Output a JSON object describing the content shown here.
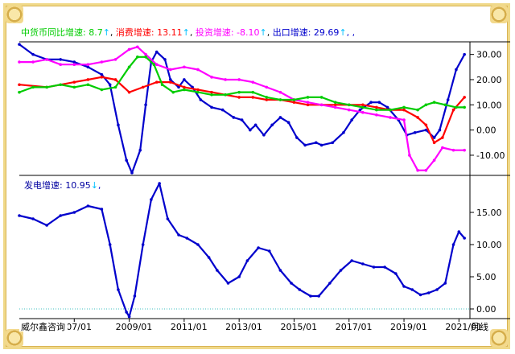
{
  "chart_data": [
    {
      "type": "line",
      "title": "",
      "legend": [
        {
          "label": "中货币同比增速: 8.7",
          "arrow": "↑",
          "color": "#00cc00"
        },
        {
          "label": "消费增速: 13.11",
          "arrow": "↑",
          "color": "#ff0000"
        },
        {
          "label": "投资增速: -8.10",
          "arrow": "↑",
          "color": "#ff00ff"
        },
        {
          "label": "出口增速: 29.69",
          "arrow": "↑",
          "color": "#0000cc"
        }
      ],
      "legend_tail": ",  ,",
      "yticks": [
        "30.00",
        "20.00",
        "10.00",
        "0.00",
        "-10.00"
      ],
      "ylim": [
        -18,
        35
      ],
      "xlim": [
        2005,
        2021.4
      ],
      "series": [
        {
          "color": "#0000cc",
          "x": [
            2005.0,
            2005.5,
            2006.0,
            2006.5,
            2007.0,
            2007.5,
            2008.0,
            2008.3,
            2008.6,
            2008.9,
            2009.1,
            2009.4,
            2009.6,
            2009.8,
            2010.0,
            2010.3,
            2010.5,
            2010.8,
            2011.0,
            2011.3,
            2011.6,
            2012.0,
            2012.4,
            2012.8,
            2013.1,
            2013.4,
            2013.6,
            2013.9,
            2014.2,
            2014.5,
            2014.8,
            2015.1,
            2015.4,
            2015.8,
            2016.0,
            2016.4,
            2016.8,
            2017.1,
            2017.4,
            2017.8,
            2018.1,
            2018.4,
            2018.8,
            2019.1,
            2019.4,
            2019.8,
            2020.1,
            2020.3,
            2020.6,
            2020.9,
            2021.2
          ],
          "values": [
            34,
            30,
            28,
            28,
            27,
            25,
            22,
            18,
            2,
            -12,
            -17,
            -8,
            10,
            27,
            31,
            28,
            20,
            17,
            20,
            17,
            12,
            9,
            8,
            5,
            4,
            0,
            2,
            -2,
            2,
            5,
            3,
            -3,
            -6,
            -5,
            -6,
            -5,
            -1,
            4,
            8,
            11,
            11,
            9,
            4,
            -2,
            -1,
            0,
            -3,
            0,
            12,
            24,
            30
          ]
        },
        {
          "color": "#ff0000",
          "x": [
            2005.0,
            2006.0,
            2007.0,
            2007.5,
            2008.0,
            2008.5,
            2009.0,
            2009.5,
            2010.0,
            2010.5,
            2011.0,
            2011.5,
            2012.0,
            2012.5,
            2013.0,
            2013.5,
            2014.0,
            2014.5,
            2015.0,
            2015.5,
            2016.0,
            2016.5,
            2017.0,
            2017.5,
            2018.0,
            2018.5,
            2019.0,
            2019.5,
            2019.8,
            2020.1,
            2020.4,
            2020.8,
            2021.2
          ],
          "values": [
            18,
            17,
            19,
            20,
            21,
            20,
            15,
            17,
            19,
            19,
            17,
            16,
            15,
            14,
            13,
            13,
            12,
            12,
            11,
            10,
            10,
            10,
            10,
            10,
            9,
            8,
            8,
            5,
            2,
            -5,
            -3,
            8,
            13
          ]
        },
        {
          "color": "#ff00ff",
          "x": [
            2005.0,
            2005.5,
            2006.0,
            2006.5,
            2007.0,
            2007.5,
            2008.0,
            2008.5,
            2009.0,
            2009.3,
            2009.6,
            2010.0,
            2010.5,
            2011.0,
            2011.5,
            2012.0,
            2012.5,
            2013.0,
            2013.5,
            2014.0,
            2014.5,
            2015.0,
            2015.5,
            2016.0,
            2016.5,
            2017.0,
            2017.5,
            2018.0,
            2018.5,
            2019.0,
            2019.2,
            2019.5,
            2019.8,
            2020.1,
            2020.4,
            2020.8,
            2021.2
          ],
          "values": [
            27,
            27,
            28,
            26,
            26,
            26,
            27,
            28,
            32,
            33,
            30,
            26,
            24,
            25,
            24,
            21,
            20,
            20,
            19,
            17,
            15,
            12,
            11,
            10,
            9,
            8,
            7,
            6,
            5,
            4,
            -10,
            -16,
            -16,
            -12,
            -7,
            -8,
            -8
          ]
        },
        {
          "color": "#00cc00",
          "x": [
            2005.0,
            2005.5,
            2006.0,
            2006.5,
            2007.0,
            2007.5,
            2008.0,
            2008.5,
            2009.0,
            2009.3,
            2009.6,
            2009.9,
            2010.2,
            2010.6,
            2011.0,
            2011.5,
            2012.0,
            2012.5,
            2013.0,
            2013.5,
            2014.0,
            2014.5,
            2015.0,
            2015.5,
            2016.0,
            2016.5,
            2017.0,
            2017.5,
            2018.0,
            2018.5,
            2019.0,
            2019.5,
            2019.8,
            2020.1,
            2020.5,
            2020.9,
            2021.2
          ],
          "values": [
            15,
            17,
            17,
            18,
            17,
            18,
            16,
            17,
            25,
            29,
            29,
            26,
            18,
            15,
            16,
            15,
            14,
            14,
            15,
            15,
            13,
            12,
            12,
            13,
            13,
            11,
            10,
            9,
            8,
            8,
            9,
            8,
            10,
            11,
            10,
            9,
            9
          ]
        }
      ]
    },
    {
      "type": "line",
      "title": "",
      "legend": [
        {
          "label": "发电增速: 10.95",
          "arrow": "↓",
          "color": "#0000a0"
        }
      ],
      "legend_tail": ",",
      "yticks": [
        "15.00",
        "10.00",
        "5.00",
        "0.00"
      ],
      "ylim": [
        -1.5,
        20.5
      ],
      "xlim": [
        2005,
        2021.4
      ],
      "xticks": [
        "007/01",
        "2009/01",
        "2011/01",
        "2013/01",
        "2015/01",
        "2017/01",
        "2019/01",
        "2021/01"
      ],
      "xtick_years": [
        2007,
        2009,
        2011,
        2013,
        2015,
        2017,
        2019,
        2021
      ],
      "xaxis_suffix": "月线",
      "zero_line": true,
      "series": [
        {
          "color": "#0000cc",
          "x": [
            2005.0,
            2005.5,
            2006.0,
            2006.5,
            2007.0,
            2007.5,
            2008.0,
            2008.3,
            2008.6,
            2008.9,
            2009.0,
            2009.2,
            2009.5,
            2009.8,
            2010.1,
            2010.4,
            2010.8,
            2011.1,
            2011.5,
            2011.9,
            2012.2,
            2012.6,
            2013.0,
            2013.3,
            2013.7,
            2014.1,
            2014.5,
            2014.9,
            2015.2,
            2015.6,
            2015.9,
            2016.3,
            2016.7,
            2017.1,
            2017.5,
            2017.9,
            2018.3,
            2018.7,
            2019.0,
            2019.3,
            2019.6,
            2019.9,
            2020.2,
            2020.5,
            2020.8,
            2021.0,
            2021.2
          ],
          "values": [
            14.5,
            14,
            13,
            14.5,
            15,
            16,
            15.5,
            10,
            3,
            -0.5,
            -1.2,
            2,
            10,
            17,
            19.5,
            14,
            11.5,
            11,
            10,
            8,
            6,
            4,
            5,
            7.5,
            9.5,
            9,
            6,
            4,
            3,
            2,
            2,
            4,
            6,
            7.5,
            7,
            6.5,
            6.5,
            5.5,
            3.5,
            3,
            2.2,
            2.5,
            3,
            4,
            10,
            12,
            11
          ]
        }
      ]
    }
  ],
  "watermark": "威尔鑫咨询"
}
